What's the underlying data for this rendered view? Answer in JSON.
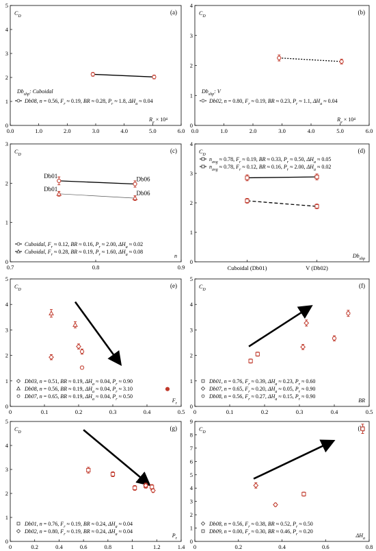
{
  "chart_data": [
    {
      "id": "a",
      "type": "scatter",
      "panel_label": "(a)",
      "ylabel": "C_D",
      "xlabel": "R_e × 10^4",
      "xlim": [
        0,
        6
      ],
      "ylim": [
        0,
        5
      ],
      "xticks": [
        "0.0",
        "1.0",
        "2.0",
        "3.0",
        "4.0",
        "5.0",
        "6.0"
      ],
      "yticks": [
        "0",
        "1",
        "2",
        "3",
        "4",
        "5"
      ],
      "annotation": "Db_shp: Cuboidal",
      "series": [
        {
          "name": "Db08, n = 0.56, Fr ≈ 0.19, BR ≈ 0.28, Pr ≈ 1.8, ΔHa ≈ 0.04",
          "x": [
            2.9,
            5.05
          ],
          "y": [
            2.13,
            2.02
          ],
          "err": [
            0.08,
            0.08
          ],
          "line": "solid",
          "marker": "circle"
        }
      ],
      "legend": "bottom-left",
      "grid": false
    },
    {
      "id": "b",
      "type": "scatter",
      "panel_label": "(b)",
      "ylabel": "C_D",
      "xlabel": "R_e × 10^4",
      "xlim": [
        0,
        6
      ],
      "ylim": [
        0,
        4
      ],
      "xticks": [
        "0.0",
        "1.0",
        "2.0",
        "3.0",
        "4.0",
        "5.0",
        "6.0"
      ],
      "yticks": [
        "0",
        "1",
        "2",
        "3",
        "4"
      ],
      "annotation": "Db_shp: V",
      "series": [
        {
          "name": "Db02, n = 0.80, Fr ≈ 0.19, BR ≈ 0.23, Pr ≈ 1.1, ΔHa ≈ 0.04",
          "x": [
            2.9,
            5.05
          ],
          "y": [
            2.25,
            2.13
          ],
          "err": [
            0.1,
            0.08
          ],
          "line": "dotted",
          "marker": "circle"
        }
      ],
      "legend": "bottom-left",
      "grid": false
    },
    {
      "id": "c",
      "type": "scatter",
      "panel_label": "(c)",
      "ylabel": "C_D",
      "xlabel": "n",
      "xlim": [
        0.7,
        0.9
      ],
      "ylim": [
        0,
        3
      ],
      "xticks": [
        "0.7",
        "0.8",
        "0.9"
      ],
      "yticks": [
        "0",
        "1",
        "2",
        "3"
      ],
      "point_labels": [
        "Db01",
        "Db06",
        "Db01",
        "Db06"
      ],
      "series": [
        {
          "name": "Cuboidal, Fr ≈ 0.12, BR ≈ 0.16, Pr ≈ 2.00, ΔHa ≈ 0.02",
          "x": [
            0.757,
            0.846
          ],
          "y": [
            2.06,
            1.98
          ],
          "err": [
            0.1,
            0.08
          ],
          "line": "solid",
          "marker": "circle"
        },
        {
          "name": "Cuboidal, Fr ≈ 0.28, BR ≈ 0.19, Pr ≈ 1.60, ΔHa ≈ 0.08",
          "x": [
            0.757,
            0.846
          ],
          "y": [
            1.73,
            1.62
          ],
          "err": [
            0.06,
            0.06
          ],
          "line": "thin",
          "marker": "triangle"
        }
      ],
      "legend": "bottom-left",
      "grid": false
    },
    {
      "id": "d",
      "type": "scatter",
      "panel_label": "(d)",
      "ylabel": "C_D",
      "xlabel": "Db_shp",
      "ylim": [
        0,
        4
      ],
      "categories": [
        "Cuboidal (Db01)",
        "V (Db02)"
      ],
      "yticks": [
        "0",
        "1",
        "2",
        "3",
        "4"
      ],
      "series": [
        {
          "name": "n_avg ≈ 0.78, Fr ≈ 0.19, BR ≈ 0.33, Pr ≈ 0.50, ΔHa ≈ 0.05",
          "values": [
            2.85,
            2.88
          ],
          "err": [
            0.1,
            0.1
          ],
          "line": "solid",
          "marker": "square"
        },
        {
          "name": "n_avg ≈ 0.78, Fr ≈ 0.12, BR ≈ 0.16, Pr ≈ 2.00, ΔHa ≈ 0.02",
          "values": [
            2.07,
            1.88
          ],
          "err": [
            0.08,
            0.08
          ],
          "line": "dashed",
          "marker": "square"
        }
      ],
      "legend": "top-left",
      "grid": false
    },
    {
      "id": "e",
      "type": "scatter",
      "panel_label": "(e)",
      "ylabel": "C_D",
      "xlabel": "F_r",
      "xlim": [
        0,
        0.5
      ],
      "ylim": [
        0,
        5
      ],
      "xticks": [
        "0",
        "0.1",
        "0.2",
        "0.3",
        "0.4",
        "0.5"
      ],
      "yticks": [
        "0",
        "1",
        "2",
        "3",
        "4",
        "5"
      ],
      "arrow": {
        "from": [
          0.19,
          4.1
        ],
        "to": [
          0.32,
          1.7
        ]
      },
      "series": [
        {
          "name": "Db03, n = 0.51, BR ≈ 0.19, ΔHa ≈ 0.04, Pr ≈ 0.90",
          "x": [
            0.12,
            0.2
          ],
          "y": [
            1.93,
            2.35
          ],
          "err": [
            0.1,
            0.1
          ],
          "marker": "diamond"
        },
        {
          "name": "Db08, n = 0.56, BR ≈ 0.19, ΔHa ≈ 0.04, Pr ≈ 3.10",
          "x": [
            0.12,
            0.19
          ],
          "y": [
            3.65,
            3.2
          ],
          "err": [
            0.15,
            0.12
          ],
          "marker": "triangle"
        },
        {
          "name": "Db07, n = 0.65, BR ≈ 0.19, ΔHa ≈ 0.04, Pr ≈ 0.50",
          "x": [
            0.21,
            0.21,
            0.46
          ],
          "y": [
            2.15,
            1.52,
            0.68
          ],
          "err": [
            0.1,
            0.06,
            0.04
          ],
          "marker": "circle"
        }
      ],
      "legend": "bottom-left",
      "grid": false
    },
    {
      "id": "f",
      "type": "scatter",
      "panel_label": "(f)",
      "ylabel": "C_D",
      "xlabel": "BR",
      "xlim": [
        0,
        0.5
      ],
      "ylim": [
        0,
        5
      ],
      "xticks": [
        "0",
        "0.1",
        "0.2",
        "0.3",
        "0.4",
        "0.5"
      ],
      "yticks": [
        "0",
        "1",
        "2",
        "3",
        "4",
        "5"
      ],
      "arrow": {
        "from": [
          0.155,
          2.35
        ],
        "to": [
          0.33,
          3.9
        ]
      },
      "series": [
        {
          "name": "Db01, n = 0.76, Fr ≈ 0.39, ΔHa ≈ 0.23, Pr ≈ 0.60",
          "x": [
            0.16,
            0.18
          ],
          "y": [
            1.78,
            2.05
          ],
          "err": [
            0.08,
            0.08
          ],
          "marker": "square"
        },
        {
          "name": "Db07, n = 0.65, Fr ≈ 0.20, ΔHa ≈ 0.05, Pr ≈ 0.90",
          "x": [
            0.31,
            0.32
          ],
          "y": [
            2.33,
            3.27
          ],
          "err": [
            0.1,
            0.12
          ],
          "marker": "diamond"
        },
        {
          "name": "Db08, n = 0.56, Fr ≈ 0.27, ΔHa ≈ 0.15, Pr ≈ 0.90",
          "x": [
            0.4,
            0.44
          ],
          "y": [
            2.67,
            3.65
          ],
          "err": [
            0.1,
            0.12
          ],
          "marker": "circle"
        }
      ],
      "legend": "bottom-left",
      "grid": false
    },
    {
      "id": "g",
      "type": "scatter",
      "panel_label": "(g)",
      "ylabel": "C_D",
      "xlabel": "P_r",
      "xlim": [
        0,
        1.4
      ],
      "ylim": [
        0,
        5
      ],
      "xticks": [
        "0",
        "0.2",
        "0.4",
        "0.6",
        "0.8",
        "1",
        "1.2",
        "1.4"
      ],
      "yticks": [
        "0",
        "1",
        "2",
        "3",
        "4",
        "5"
      ],
      "arrow": {
        "from": [
          0.6,
          4.65
        ],
        "to": [
          1.13,
          2.4
        ]
      },
      "series": [
        {
          "name": "Db01, n = 0.76, Fr ≈ 0.19, BR ≈ 0.24, ΔHa ≈ 0.04",
          "x": [
            0.64,
            0.84,
            1.02,
            1.11,
            1.16
          ],
          "y": [
            2.97,
            2.8,
            2.23,
            2.32,
            2.27
          ],
          "err": [
            0.12,
            0.1,
            0.1,
            0.1,
            0.1
          ],
          "marker": "square"
        },
        {
          "name": "Db02, n = 0.80, Fr ≈ 0.19, BR ≈ 0.24, ΔHa ≈ 0.04",
          "x": [
            1.11,
            1.17
          ],
          "y": [
            2.33,
            2.12
          ],
          "err": [
            0.1,
            0.08
          ],
          "marker": "diamond"
        }
      ],
      "legend": "bottom-left",
      "grid": false
    },
    {
      "id": "h",
      "type": "scatter",
      "panel_label": "(h)",
      "ylabel": "C_D",
      "xlabel": "ΔH_a",
      "xlim": [
        0,
        0.8
      ],
      "ylim": [
        0,
        9
      ],
      "xticks": [
        "0",
        "0.2",
        "0.4",
        "0.6",
        "0.8"
      ],
      "yticks": [
        "0",
        "1",
        "2",
        "3",
        "4",
        "5",
        "6",
        "7",
        "8",
        "9"
      ],
      "arrow": {
        "from": [
          0.27,
          4.7
        ],
        "to": [
          0.63,
          7.5
        ]
      },
      "series": [
        {
          "name": "Db08, n = 0.56, Fr ≈ 0.38, BR ≈ 0.52, Pr ≈ 0.50",
          "x": [
            0.28,
            0.37
          ],
          "y": [
            4.2,
            2.75
          ],
          "err": [
            0.2,
            0.12
          ],
          "marker": "diamond"
        },
        {
          "name": "Db09, n = 0.00, Fr ≈ 0.30, BR ≈ 0.46, Pr ≈ 0.20",
          "x": [
            0.5,
            0.77
          ],
          "y": [
            3.55,
            8.45
          ],
          "err": [
            0.15,
            0.35
          ],
          "marker": "square"
        }
      ],
      "legend": "bottom-left",
      "grid": false
    }
  ]
}
